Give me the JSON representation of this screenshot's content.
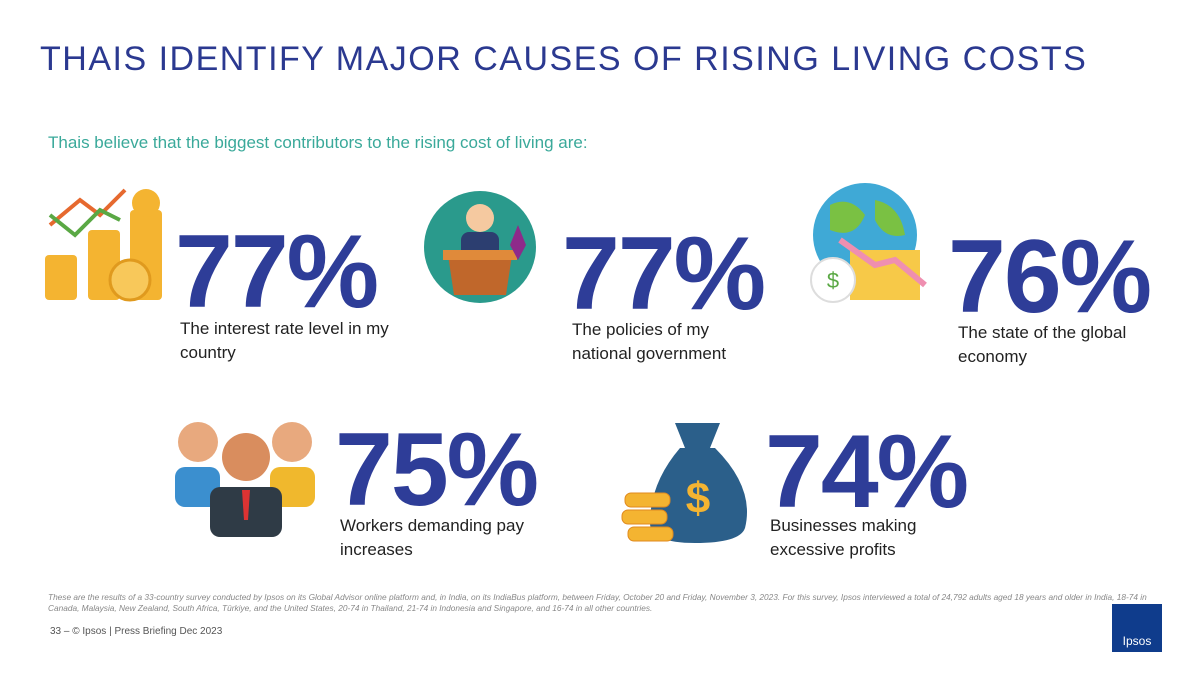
{
  "header": {
    "title": "THAIS IDENTIFY MAJOR CAUSES OF RISING LIVING COSTS",
    "subtitle": "Thais believe that the biggest contributors to the rising cost of living are:"
  },
  "items": [
    {
      "value": "77%",
      "label": "The interest rate level in my country"
    },
    {
      "value": "77%",
      "label": "The policies of my national government"
    },
    {
      "value": "76%",
      "label": "The state of the global economy"
    },
    {
      "value": "75%",
      "label": "Workers demanding pay increases"
    },
    {
      "value": "74%",
      "label": "Businesses making excessive profits"
    }
  ],
  "footnote": "These are the results of a 33-country survey conducted by Ipsos on its Global Advisor online platform and, in India, on its IndiaBus platform, between Friday, October 20 and Friday, November 3, 2023. For this survey, Ipsos interviewed a total of 24,792 adults aged 18 years and older in India, 18-74 in Canada, Malaysia, New Zealand, South Africa, Türkiye, and the United States, 20-74 in Thailand, 21-74 in Indonesia and Singapore, and 16-74 in all other countries.",
  "footer": "33 ‒ © Ipsos | Press Briefing Dec 2023",
  "logo": "Ipsos"
}
